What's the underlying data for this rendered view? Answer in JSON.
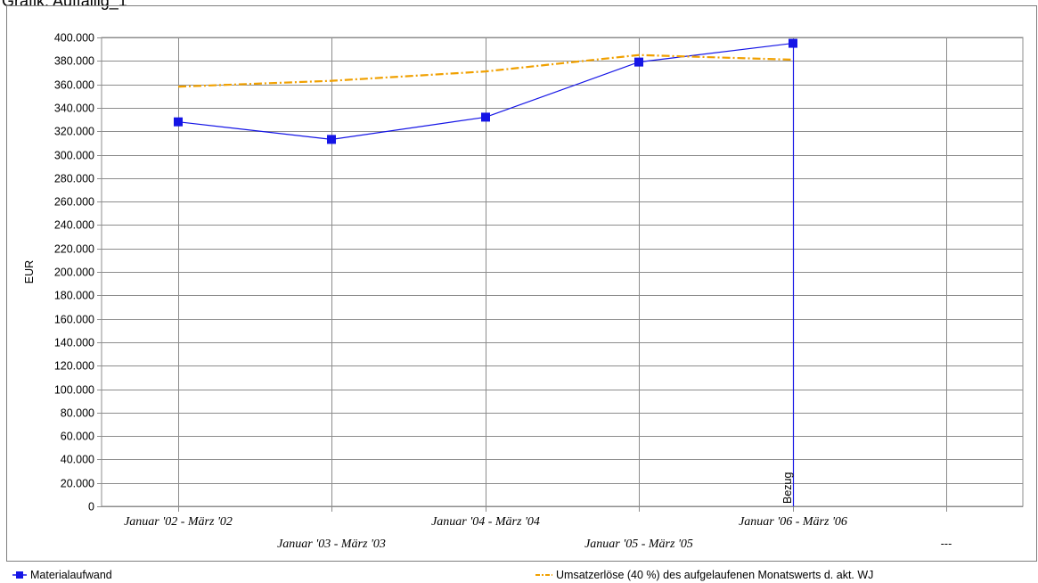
{
  "chart_title": "Grafik: Auffällig_1",
  "chart_data": {
    "type": "line",
    "title": "Grafik: Auffällig_1",
    "xlabel": "",
    "ylabel": "EUR",
    "ylim": [
      0,
      400000
    ],
    "y_tick_step": 20000,
    "y_tick_labels": [
      "0",
      "20.000",
      "40.000",
      "60.000",
      "80.000",
      "100.000",
      "120.000",
      "140.000",
      "160.000",
      "180.000",
      "200.000",
      "220.000",
      "240.000",
      "260.000",
      "280.000",
      "300.000",
      "320.000",
      "340.000",
      "360.000",
      "380.000",
      "400.000"
    ],
    "categories": [
      "Januar '02 - März '02",
      "Januar '03 - März '03",
      "Januar '04 - März '04",
      "Januar '05 - März '05",
      "Januar '06 - März '06",
      "---"
    ],
    "series": [
      {
        "name": "Materialaufwand",
        "values": [
          328000,
          313000,
          332000,
          379000,
          395000,
          null
        ],
        "color": "#1515e6",
        "style": "solid",
        "marker": "square"
      },
      {
        "name": "Umsatzerlöse (40 %) des aufgelaufenen Monatswerts d. akt. WJ",
        "values": [
          358000,
          363000,
          371000,
          385000,
          381000,
          null
        ],
        "color": "#f0a000",
        "style": "dash-dot",
        "marker": "none"
      }
    ],
    "reference_line": {
      "label": "Bezug",
      "category": "Januar '06 - März '06",
      "color": "#1515e6"
    },
    "grid": true,
    "legend_position": "bottom"
  }
}
